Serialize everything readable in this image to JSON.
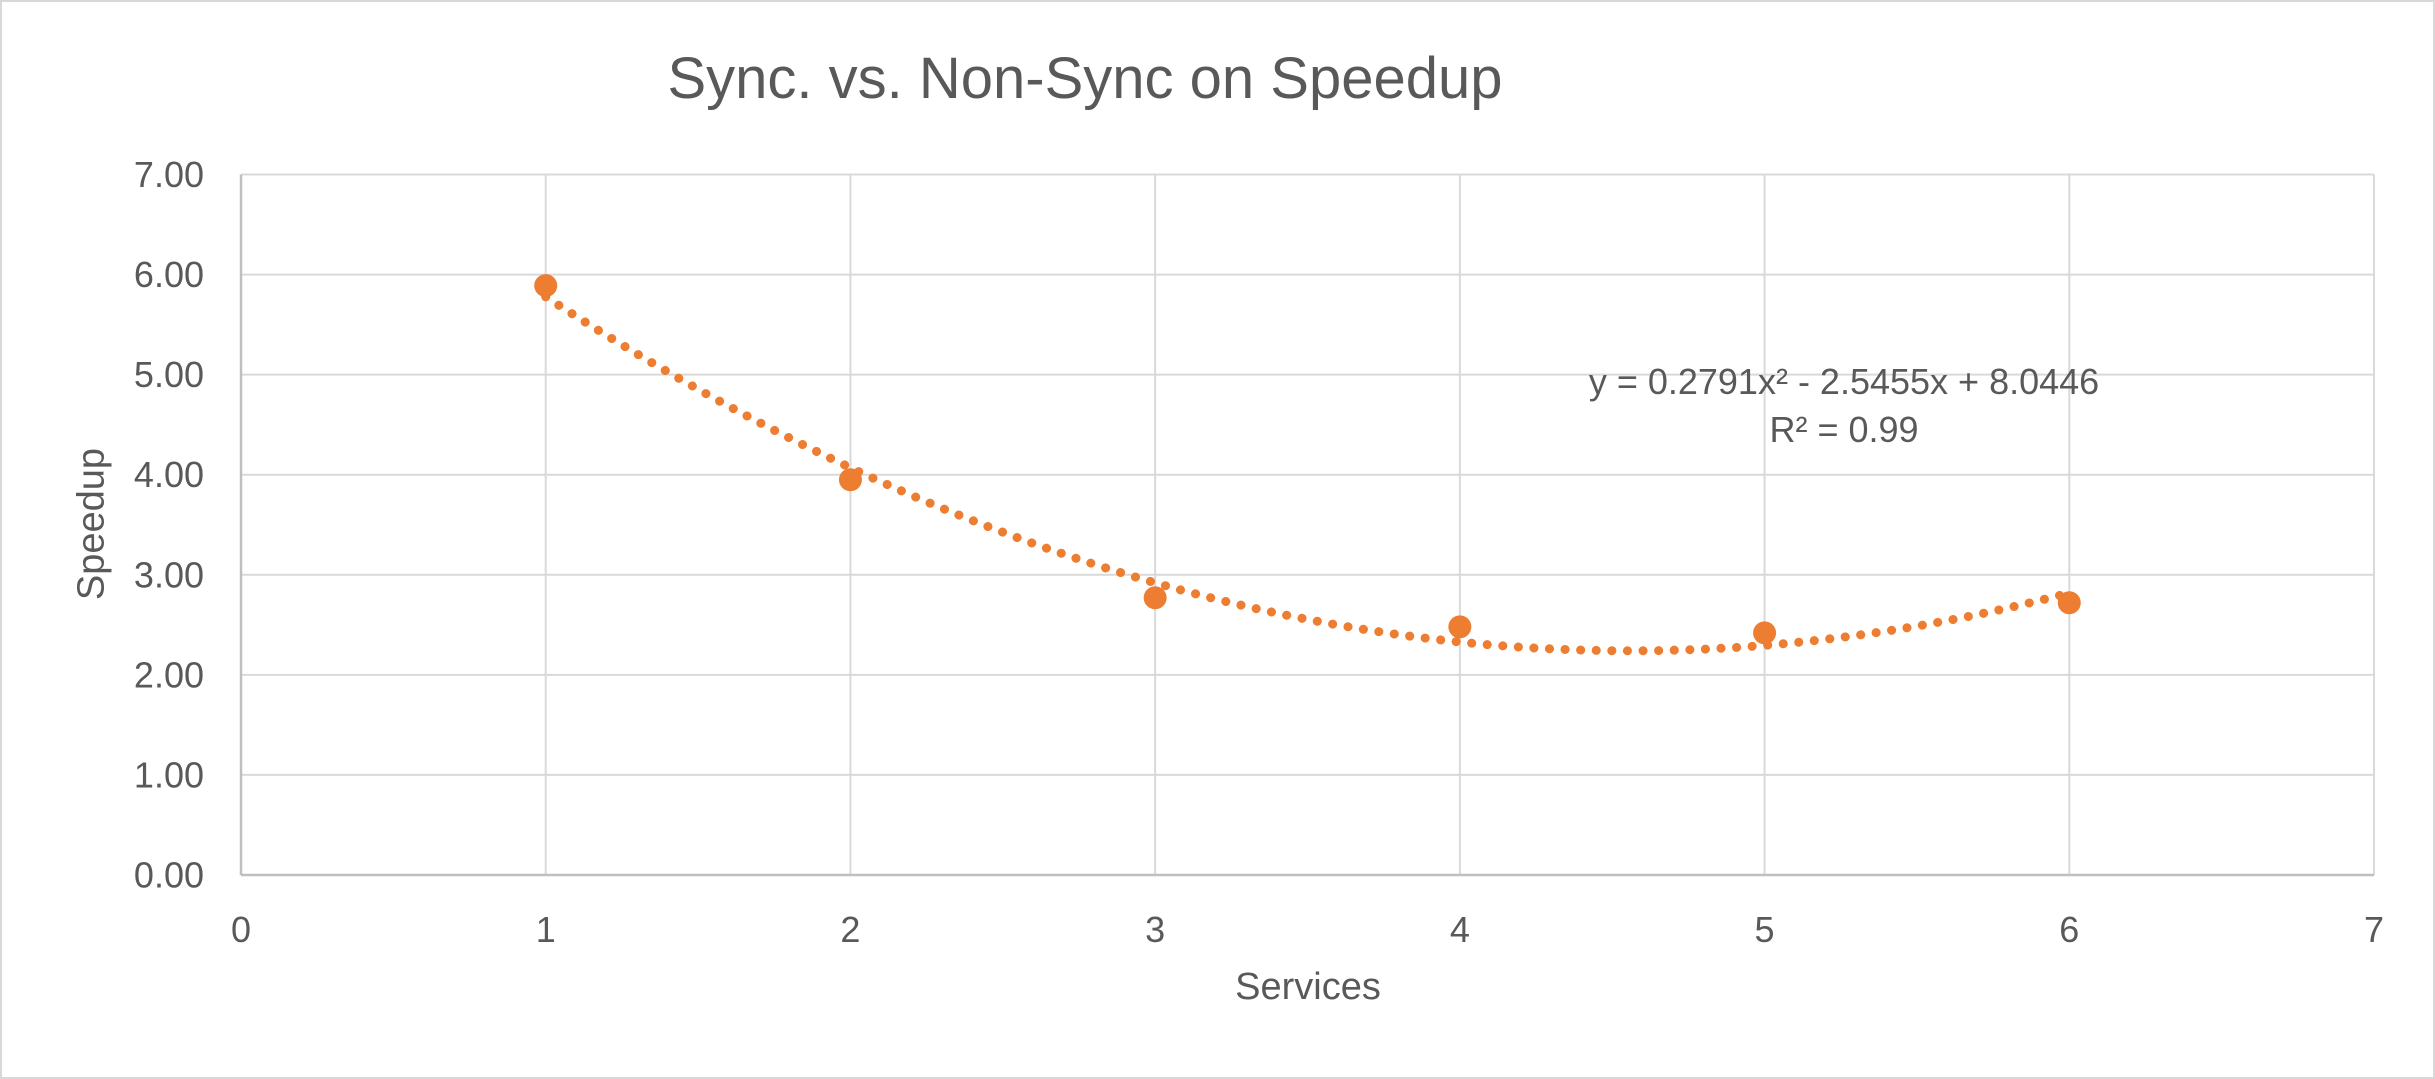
{
  "chart_data": {
    "type": "scatter",
    "title": "Sync. vs. Non-Sync on Speedup",
    "xlabel": "Services",
    "ylabel": "Speedup",
    "xlim": [
      0,
      7
    ],
    "ylim": [
      0,
      7
    ],
    "x_ticks": [
      "0",
      "1",
      "2",
      "3",
      "4",
      "5",
      "6",
      "7"
    ],
    "x_tick_values": [
      0,
      1,
      2,
      3,
      4,
      5,
      6,
      7
    ],
    "y_ticks": [
      "0.00",
      "1.00",
      "2.00",
      "3.00",
      "4.00",
      "5.00",
      "6.00",
      "7.00"
    ],
    "y_tick_values": [
      0,
      1,
      2,
      3,
      4,
      5,
      6,
      7
    ],
    "grid": true,
    "legend": false,
    "series": [
      {
        "name": "Speedup",
        "marker": "circle",
        "color": "#ED7D31",
        "points": [
          {
            "x": 1,
            "y": 5.89
          },
          {
            "x": 2,
            "y": 3.95
          },
          {
            "x": 3,
            "y": 2.77
          },
          {
            "x": 4,
            "y": 2.48
          },
          {
            "x": 5,
            "y": 2.42
          },
          {
            "x": 6,
            "y": 2.72
          }
        ]
      }
    ],
    "trendline": {
      "type": "polynomial",
      "order": 2,
      "coefficients": {
        "a": 0.2791,
        "b": -2.5455,
        "c": 8.0446
      },
      "equation": "y = 0.2791x² - 2.5455x + 8.0446",
      "r_squared_label": "R² = 0.99",
      "r_squared": 0.99,
      "style": "dotted",
      "color": "#ED7D31",
      "x_range": [
        1,
        6
      ]
    },
    "colors": {
      "series": "#ED7D31",
      "gridline": "#D9D9D9",
      "axis_line": "#BFBFBF",
      "text": "#595959",
      "background": "#FFFFFF",
      "border": "#D8D8D8"
    }
  }
}
